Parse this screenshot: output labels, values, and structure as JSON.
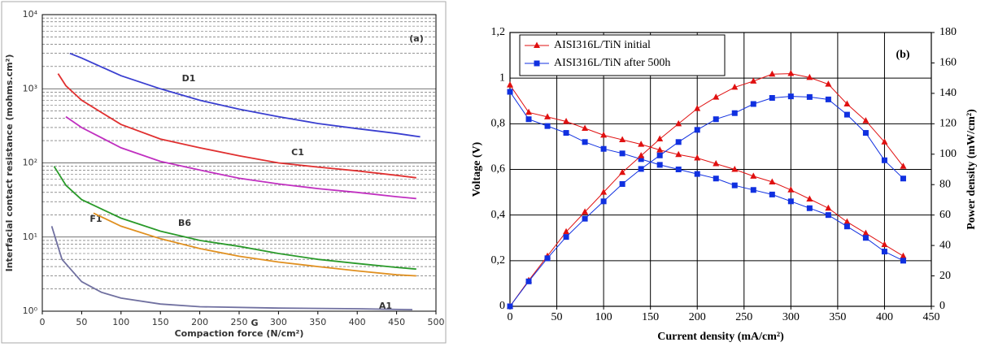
{
  "chart_data": [
    {
      "type": "line",
      "log_y": true,
      "annotation": "(a)",
      "xlabel": "Compaction force (N/cm²)",
      "ylabel": "Interfacial contact resistance (mohms.cm²)",
      "xlim": [
        0,
        500
      ],
      "xticks": [
        0,
        50,
        100,
        150,
        200,
        250,
        300,
        350,
        400,
        450,
        500
      ],
      "ylim": [
        1,
        10000
      ],
      "yticks": [
        {
          "value": 1,
          "label": "10⁰"
        },
        {
          "value": 10,
          "label": "10¹"
        },
        {
          "value": 100,
          "label": "10²"
        },
        {
          "value": 1000,
          "label": "10³"
        },
        {
          "value": 10000,
          "label": "10⁴"
        }
      ],
      "minor_yticks": [
        2,
        3,
        4,
        5,
        6,
        7,
        8,
        9,
        20,
        30,
        40,
        50,
        60,
        70,
        80,
        90,
        200,
        300,
        400,
        500,
        600,
        700,
        800,
        900,
        2000,
        3000,
        4000,
        5000,
        6000,
        7000,
        8000,
        9000
      ],
      "grid": true,
      "series": [
        {
          "name": "D1",
          "color": "#3a3fd0",
          "x": [
            35,
            50,
            100,
            150,
            200,
            250,
            300,
            350,
            400,
            450,
            480
          ],
          "values": [
            3000,
            2600,
            1500,
            1000,
            700,
            530,
            420,
            340,
            290,
            250,
            225
          ]
        },
        {
          "name": "C1",
          "color": "#e03030",
          "x": [
            20,
            30,
            50,
            100,
            150,
            200,
            250,
            300,
            350,
            400,
            450,
            475
          ],
          "values": [
            1600,
            1100,
            700,
            330,
            210,
            160,
            125,
            100,
            88,
            78,
            68,
            63
          ]
        },
        {
          "name": "F1",
          "color": "#c030c0",
          "x": [
            30,
            50,
            100,
            150,
            200,
            250,
            300,
            350,
            400,
            450,
            475
          ],
          "values": [
            420,
            300,
            160,
            105,
            80,
            62,
            52,
            45,
            40,
            35,
            33
          ]
        },
        {
          "name": "B6",
          "color": "#2a9a2a",
          "x": [
            15,
            30,
            50,
            100,
            150,
            200,
            250,
            300,
            350,
            400,
            450,
            475
          ],
          "values": [
            90,
            50,
            32,
            18,
            12,
            9,
            7.5,
            6,
            5,
            4.4,
            3.9,
            3.7
          ]
        },
        {
          "name": "A1",
          "color": "#e09020",
          "x": [
            65,
            100,
            150,
            200,
            250,
            300,
            350,
            400,
            450,
            475
          ],
          "values": [
            21,
            14,
            9.5,
            7,
            5.5,
            4.6,
            4,
            3.5,
            3.1,
            3
          ]
        },
        {
          "name": "G",
          "color": "#7070a0",
          "x": [
            12,
            25,
            50,
            75,
            100,
            150,
            200,
            300,
            400,
            470
          ],
          "values": [
            14,
            5,
            2.5,
            1.8,
            1.5,
            1.25,
            1.15,
            1.1,
            1.08,
            1.05
          ]
        }
      ]
    },
    {
      "type": "line",
      "annotation": "(b)",
      "legend": "top-left",
      "xlabel": "Current density (mA/cm²)",
      "ylabel": "Voltage (V)",
      "y2label": "Power density (mW/cm²)",
      "xlim": [
        0,
        450
      ],
      "xticks": [
        0,
        50,
        100,
        150,
        200,
        250,
        300,
        350,
        400,
        450
      ],
      "ylim": [
        0,
        1.2
      ],
      "yticks": [
        0,
        {
          "value": 0.2,
          "label": "0,2"
        },
        {
          "value": 0.4,
          "label": "0,4"
        },
        {
          "value": 0.6,
          "label": "0,6"
        },
        {
          "value": 0.8,
          "label": "0,8"
        },
        1,
        {
          "value": 1.2,
          "label": "1,2"
        }
      ],
      "y2lim": [
        0,
        180
      ],
      "y2ticks": [
        0,
        20,
        40,
        60,
        80,
        100,
        120,
        140,
        160,
        180
      ],
      "grid": true,
      "x": [
        0,
        20,
        40,
        60,
        80,
        100,
        120,
        140,
        160,
        180,
        200,
        220,
        240,
        260,
        280,
        300,
        320,
        340,
        360,
        380,
        400,
        420
      ],
      "series": [
        {
          "name": "AISI316L/TiN initial",
          "color": "#e01010",
          "marker": "triangle",
          "values": [
            0.97,
            0.85,
            0.83,
            0.81,
            0.78,
            0.75,
            0.73,
            0.71,
            0.685,
            0.665,
            0.65,
            0.625,
            0.6,
            0.57,
            0.545,
            0.51,
            0.47,
            0.43,
            0.37,
            0.32,
            0.27,
            0.22
          ]
        },
        {
          "name": "AISI316L/TiN after 500h",
          "color": "#1030e0",
          "marker": "square",
          "values": [
            0.94,
            0.82,
            0.79,
            0.76,
            0.72,
            0.69,
            0.67,
            0.645,
            0.62,
            0.6,
            0.58,
            0.56,
            0.53,
            0.51,
            0.49,
            0.46,
            0.43,
            0.4,
            0.35,
            0.3,
            0.24,
            0.2
          ]
        },
        {
          "color": "#e01010",
          "marker": "triangle",
          "axis": "y2",
          "values": [
            0,
            17,
            33,
            49,
            62,
            75,
            88,
            99,
            110,
            120,
            130,
            137.5,
            144,
            148,
            152.6,
            153,
            150.4,
            146,
            133,
            122,
            108,
            92
          ]
        },
        {
          "color": "#1030e0",
          "marker": "square",
          "axis": "y2",
          "values": [
            0,
            16.4,
            31.6,
            45.6,
            57.6,
            69,
            80.4,
            90.3,
            99.2,
            108,
            116,
            123,
            127,
            133,
            137,
            138,
            137.6,
            136,
            126,
            114,
            96,
            84
          ]
        }
      ]
    }
  ]
}
